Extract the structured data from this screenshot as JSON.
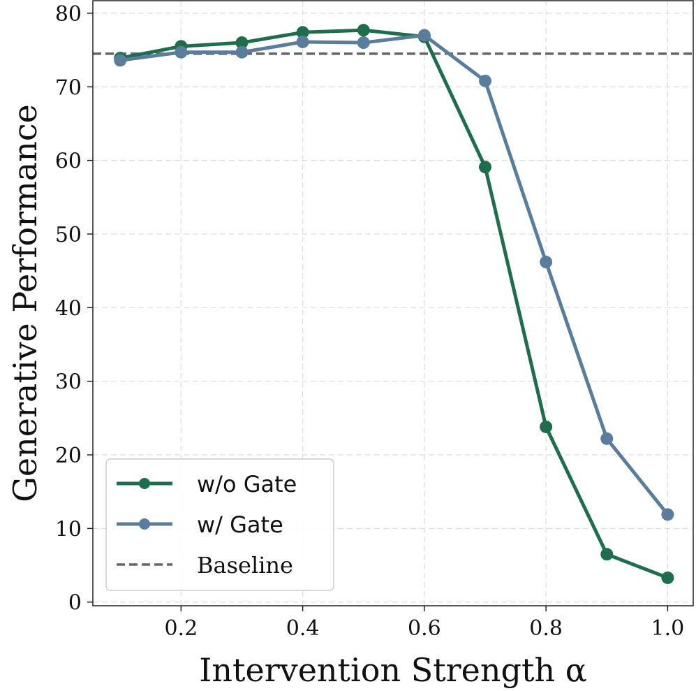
{
  "chart_data": {
    "type": "line",
    "title": "",
    "xlabel": "Intervention Strength α",
    "ylabel": "Generative Performance",
    "xlim": [
      0.055,
      1.042
    ],
    "ylim": [
      -0.5,
      81.7
    ],
    "xticks": [
      0.2,
      0.4,
      0.6,
      0.8,
      1.0
    ],
    "xtick_labels": [
      "0.2",
      "0.4",
      "0.6",
      "0.8",
      "1.0"
    ],
    "yticks": [
      0,
      10,
      20,
      30,
      40,
      50,
      60,
      70,
      80
    ],
    "ytick_labels": [
      "0",
      "10",
      "20",
      "30",
      "40",
      "50",
      "60",
      "70",
      "80"
    ],
    "grid": true,
    "legend_position": "lower-left",
    "x": [
      0.1,
      0.2,
      0.3,
      0.4,
      0.5,
      0.6,
      0.7,
      0.8,
      0.9,
      1.0
    ],
    "series": [
      {
        "name": "w/o Gate",
        "color": "#1e6e4e",
        "values": [
          73.9,
          75.5,
          76.0,
          77.4,
          77.7,
          76.8,
          59.1,
          23.8,
          6.5,
          3.3
        ]
      },
      {
        "name": "w/ Gate",
        "color": "#5a7d9c",
        "values": [
          73.6,
          74.7,
          74.7,
          76.1,
          76.0,
          77.0,
          70.8,
          46.2,
          22.2,
          11.9
        ]
      }
    ],
    "baseline": {
      "name": "Baseline",
      "value": 74.5,
      "color": "#666666"
    }
  }
}
